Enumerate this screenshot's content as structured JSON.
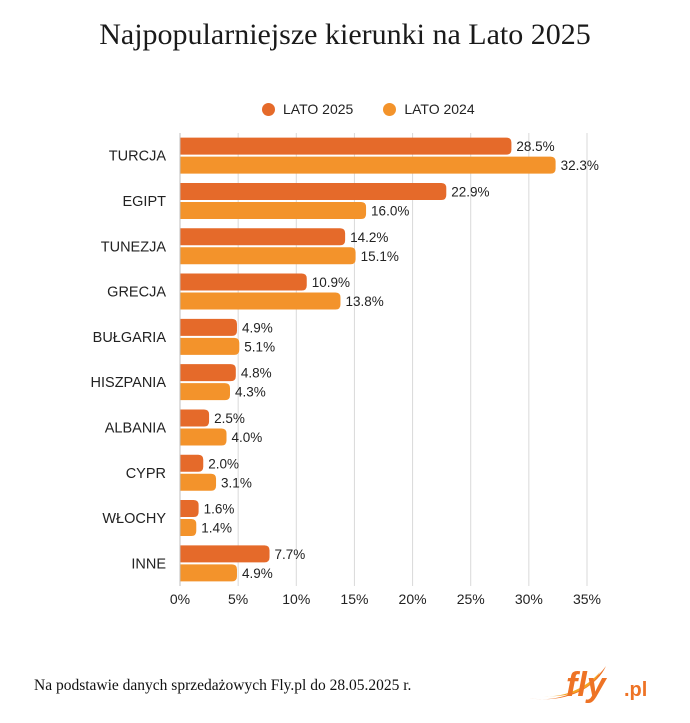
{
  "title": "Najpopularniejsze kierunki na Lato 2025",
  "footer": "Na podstawie danych sprzedażowych Fly.pl do 28.05.2025 r.",
  "logo": {
    "text": "fly",
    "suffix": ".pl",
    "colors": {
      "primary": "#ee7325",
      "accent": "#f5a623"
    }
  },
  "chart_data": {
    "type": "bar",
    "orientation": "horizontal",
    "categories": [
      "TURCJA",
      "EGIPT",
      "TUNEZJA",
      "GRECJA",
      "BUŁGARIA",
      "HISZPANIA",
      "ALBANIA",
      "CYPR",
      "WŁOCHY",
      "INNE"
    ],
    "series": [
      {
        "name": "LATO 2025",
        "color": "#e56a2a",
        "values": [
          28.5,
          22.9,
          14.2,
          10.9,
          4.9,
          4.8,
          2.5,
          2.0,
          1.6,
          7.7
        ],
        "labels": [
          "28.5%",
          "22.9%",
          "14.2%",
          "10.9%",
          "4.9%",
          "4.8%",
          "2.5%",
          "2.0%",
          "1.6%",
          "7.7%"
        ]
      },
      {
        "name": "LATO 2024",
        "color": "#f3932b",
        "values": [
          32.3,
          16.0,
          15.1,
          13.8,
          5.1,
          4.3,
          4.0,
          3.1,
          1.4,
          4.9
        ],
        "labels": [
          "32.3%",
          "16.0%",
          "15.1%",
          "13.8%",
          "5.1%",
          "4.3%",
          "4.0%",
          "3.1%",
          "1.4%",
          "4.9%"
        ]
      }
    ],
    "xlim": [
      0,
      35
    ],
    "xticks": [
      0,
      5,
      10,
      15,
      20,
      25,
      30,
      35
    ],
    "xtick_labels": [
      "0%",
      "5%",
      "10%",
      "15%",
      "20%",
      "25%",
      "30%",
      "35%"
    ],
    "grid": true,
    "legend_position": "top"
  }
}
